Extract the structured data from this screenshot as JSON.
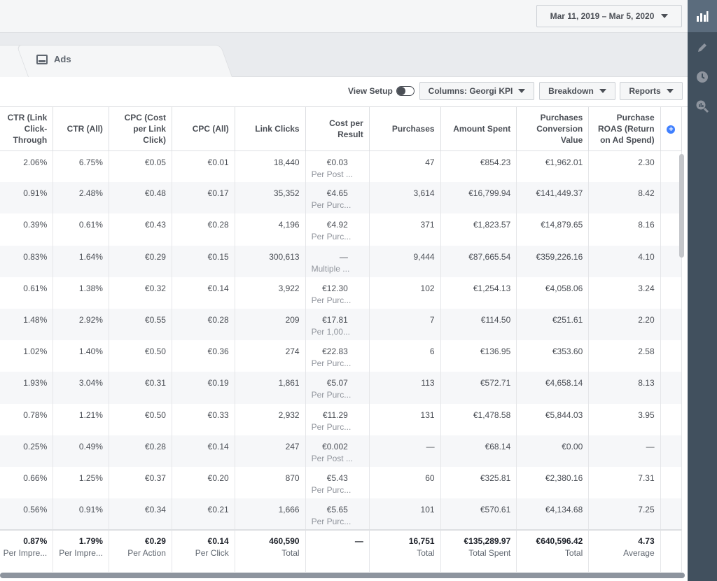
{
  "date_range": {
    "label": "Mar 11, 2019 – Mar 5, 2020"
  },
  "tabs": {
    "ads_label": "Ads"
  },
  "toolbar": {
    "view_setup": "View Setup",
    "columns": "Columns: Georgi KPI",
    "breakdown": "Breakdown",
    "reports": "Reports"
  },
  "table": {
    "headers": {
      "ctr_link": "CTR (Link Click-Through",
      "ctr_all": "CTR (All)",
      "cpc_link": "CPC (Cost per Link Click)",
      "cpc_all": "CPC (All)",
      "link_clicks": "Link Clicks",
      "cpr": "Cost per Result",
      "purchases": "Purchases",
      "amount": "Amount Spent",
      "pcv": "Purchases Conversion Value",
      "roas": "Purchase ROAS (Return on Ad Spend)"
    },
    "rows": [
      {
        "ctr_link": "2.06%",
        "ctr_all": "6.75%",
        "cpc_link": "€0.05",
        "cpc_all": "€0.01",
        "link_clicks": "18,440",
        "cpr": "€0.03",
        "cpr_sub": "Per Post ...",
        "purchases": "47",
        "amount": "€854.23",
        "pcv": "€1,962.01",
        "roas": "2.30"
      },
      {
        "ctr_link": "0.91%",
        "ctr_all": "2.48%",
        "cpc_link": "€0.48",
        "cpc_all": "€0.17",
        "link_clicks": "35,352",
        "cpr": "€4.65",
        "cpr_sub": "Per Purc...",
        "purchases": "3,614",
        "amount": "€16,799.94",
        "pcv": "€141,449.37",
        "roas": "8.42"
      },
      {
        "ctr_link": "0.39%",
        "ctr_all": "0.61%",
        "cpc_link": "€0.43",
        "cpc_all": "€0.28",
        "link_clicks": "4,196",
        "cpr": "€4.92",
        "cpr_sub": "Per Purc...",
        "purchases": "371",
        "amount": "€1,823.57",
        "pcv": "€14,879.65",
        "roas": "8.16"
      },
      {
        "ctr_link": "0.83%",
        "ctr_all": "1.64%",
        "cpc_link": "€0.29",
        "cpc_all": "€0.15",
        "link_clicks": "300,613",
        "cpr": "—",
        "cpr_sub": "Multiple ...",
        "purchases": "9,444",
        "amount": "€87,665.54",
        "pcv": "€359,226.16",
        "roas": "4.10"
      },
      {
        "ctr_link": "0.61%",
        "ctr_all": "1.38%",
        "cpc_link": "€0.32",
        "cpc_all": "€0.14",
        "link_clicks": "3,922",
        "cpr": "€12.30",
        "cpr_sub": "Per Purc...",
        "purchases": "102",
        "amount": "€1,254.13",
        "pcv": "€4,058.06",
        "roas": "3.24"
      },
      {
        "ctr_link": "1.48%",
        "ctr_all": "2.92%",
        "cpc_link": "€0.55",
        "cpc_all": "€0.28",
        "link_clicks": "209",
        "cpr": "€17.81",
        "cpr_sub": "Per 1,00...",
        "purchases": "7",
        "amount": "€114.50",
        "pcv": "€251.61",
        "roas": "2.20"
      },
      {
        "ctr_link": "1.02%",
        "ctr_all": "1.40%",
        "cpc_link": "€0.50",
        "cpc_all": "€0.36",
        "link_clicks": "274",
        "cpr": "€22.83",
        "cpr_sub": "Per Purc...",
        "purchases": "6",
        "amount": "€136.95",
        "pcv": "€353.60",
        "roas": "2.58"
      },
      {
        "ctr_link": "1.93%",
        "ctr_all": "3.04%",
        "cpc_link": "€0.31",
        "cpc_all": "€0.19",
        "link_clicks": "1,861",
        "cpr": "€5.07",
        "cpr_sub": "Per Purc...",
        "purchases": "113",
        "amount": "€572.71",
        "pcv": "€4,658.14",
        "roas": "8.13"
      },
      {
        "ctr_link": "0.78%",
        "ctr_all": "1.21%",
        "cpc_link": "€0.50",
        "cpc_all": "€0.33",
        "link_clicks": "2,932",
        "cpr": "€11.29",
        "cpr_sub": "Per Purc...",
        "purchases": "131",
        "amount": "€1,478.58",
        "pcv": "€5,844.03",
        "roas": "3.95"
      },
      {
        "ctr_link": "0.25%",
        "ctr_all": "0.49%",
        "cpc_link": "€0.28",
        "cpc_all": "€0.14",
        "link_clicks": "247",
        "cpr": "€0.002",
        "cpr_sub": "Per Post ...",
        "purchases": "—",
        "amount": "€68.14",
        "pcv": "€0.00",
        "roas": "—"
      },
      {
        "ctr_link": "0.66%",
        "ctr_all": "1.25%",
        "cpc_link": "€0.37",
        "cpc_all": "€0.20",
        "link_clicks": "870",
        "cpr": "€5.43",
        "cpr_sub": "Per Purc...",
        "purchases": "60",
        "amount": "€325.81",
        "pcv": "€2,380.16",
        "roas": "7.31"
      },
      {
        "ctr_link": "0.56%",
        "ctr_all": "0.91%",
        "cpc_link": "€0.34",
        "cpc_all": "€0.21",
        "link_clicks": "1,666",
        "cpr": "€5.65",
        "cpr_sub": "Per Purc...",
        "purchases": "101",
        "amount": "€570.61",
        "pcv": "€4,134.68",
        "roas": "7.25"
      }
    ],
    "totals": {
      "ctr_link": "0.87%",
      "ctr_link_sub": "Per Impre...",
      "ctr_all": "1.79%",
      "ctr_all_sub": "Per Impre...",
      "cpc_link": "€0.29",
      "cpc_link_sub": "Per Action",
      "cpc_all": "€0.14",
      "cpc_all_sub": "Per Click",
      "link_clicks": "460,590",
      "link_clicks_sub": "Total",
      "cpr": "—",
      "purchases": "16,751",
      "purchases_sub": "Total",
      "amount": "€135,289.97",
      "amount_sub": "Total Spent",
      "pcv": "€640,596.42",
      "pcv_sub": "Total",
      "roas": "4.73",
      "roas_sub": "Average"
    }
  },
  "rail": {
    "icons": [
      "bar-chart-icon",
      "pencil-icon",
      "clock-icon",
      "search-chart-icon"
    ]
  },
  "colors": {
    "rail_bg": "#41505e",
    "rail_active": "#5b6c7d",
    "accent": "#4080ff"
  }
}
